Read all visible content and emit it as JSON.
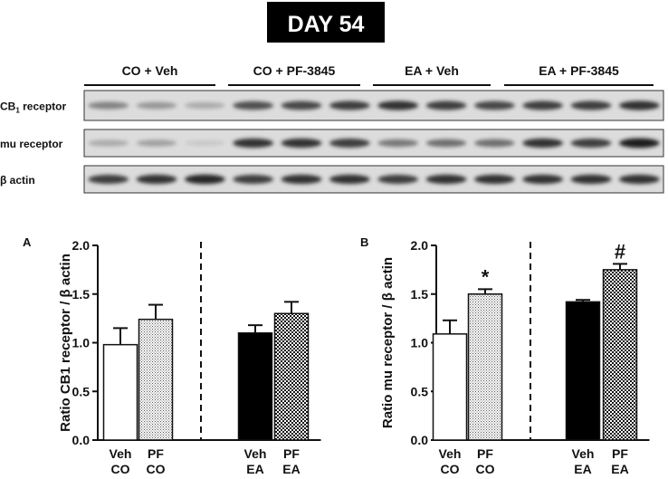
{
  "figure": {
    "title": "DAY 54"
  },
  "blot": {
    "groups": [
      "CO + Veh",
      "CO + PF-3845",
      "EA + Veh",
      "EA + PF-3845"
    ],
    "rows": [
      {
        "label_main": "CB",
        "label_sub": "1",
        "label_rest": " receptor",
        "intensity": [
          0.45,
          0.35,
          0.25,
          0.7,
          0.75,
          0.8,
          0.85,
          0.8,
          0.75,
          0.8,
          0.8,
          0.85
        ]
      },
      {
        "label_main": "mu receptor",
        "label_sub": "",
        "label_rest": "",
        "intensity": [
          0.25,
          0.3,
          0.1,
          0.85,
          0.85,
          0.8,
          0.5,
          0.55,
          0.55,
          0.85,
          0.8,
          0.95
        ]
      },
      {
        "label_main": "β actin",
        "label_sub": "",
        "label_rest": "",
        "intensity": [
          0.8,
          0.85,
          0.9,
          0.8,
          0.85,
          0.85,
          0.8,
          0.85,
          0.85,
          0.85,
          0.85,
          0.85
        ]
      }
    ]
  },
  "chart_data": [
    {
      "type": "bar",
      "panel_label": "A",
      "ylabel": "Ratio CB1 receptor / β actin",
      "ylim": [
        0,
        2.0
      ],
      "yticks": [
        "0.0",
        "0.5",
        "1.0",
        "1.5",
        "2.0"
      ],
      "ytick_values": [
        0,
        0.5,
        1.0,
        1.5,
        2.0
      ],
      "categories": [
        {
          "line1": "Veh",
          "line2": "CO",
          "fill": "white"
        },
        {
          "line1": "PF",
          "line2": "CO",
          "fill": "dots"
        },
        {
          "line1": "Veh",
          "line2": "EA",
          "fill": "black"
        },
        {
          "line1": "PF",
          "line2": "EA",
          "fill": "checker"
        }
      ],
      "values": [
        0.98,
        1.24,
        1.1,
        1.3
      ],
      "errors": [
        0.17,
        0.15,
        0.08,
        0.12
      ],
      "annotations": [
        "",
        "",
        "",
        ""
      ],
      "divider": "dashed line between CO and EA groups"
    },
    {
      "type": "bar",
      "panel_label": "B",
      "ylabel": "Ratio mu receptor / β actin",
      "ylim": [
        0,
        2.0
      ],
      "yticks": [
        "0.0",
        "0.5",
        "1.0",
        "1.5",
        "2.0"
      ],
      "ytick_values": [
        0,
        0.5,
        1.0,
        1.5,
        2.0
      ],
      "categories": [
        {
          "line1": "Veh",
          "line2": "CO",
          "fill": "white"
        },
        {
          "line1": "PF",
          "line2": "CO",
          "fill": "dots"
        },
        {
          "line1": "Veh",
          "line2": "EA",
          "fill": "black"
        },
        {
          "line1": "PF",
          "line2": "EA",
          "fill": "checker"
        }
      ],
      "values": [
        1.09,
        1.5,
        1.42,
        1.75
      ],
      "errors": [
        0.14,
        0.05,
        0.02,
        0.06
      ],
      "annotations": [
        "",
        "*",
        "",
        "#"
      ],
      "divider": "dashed line between CO and EA groups"
    }
  ]
}
